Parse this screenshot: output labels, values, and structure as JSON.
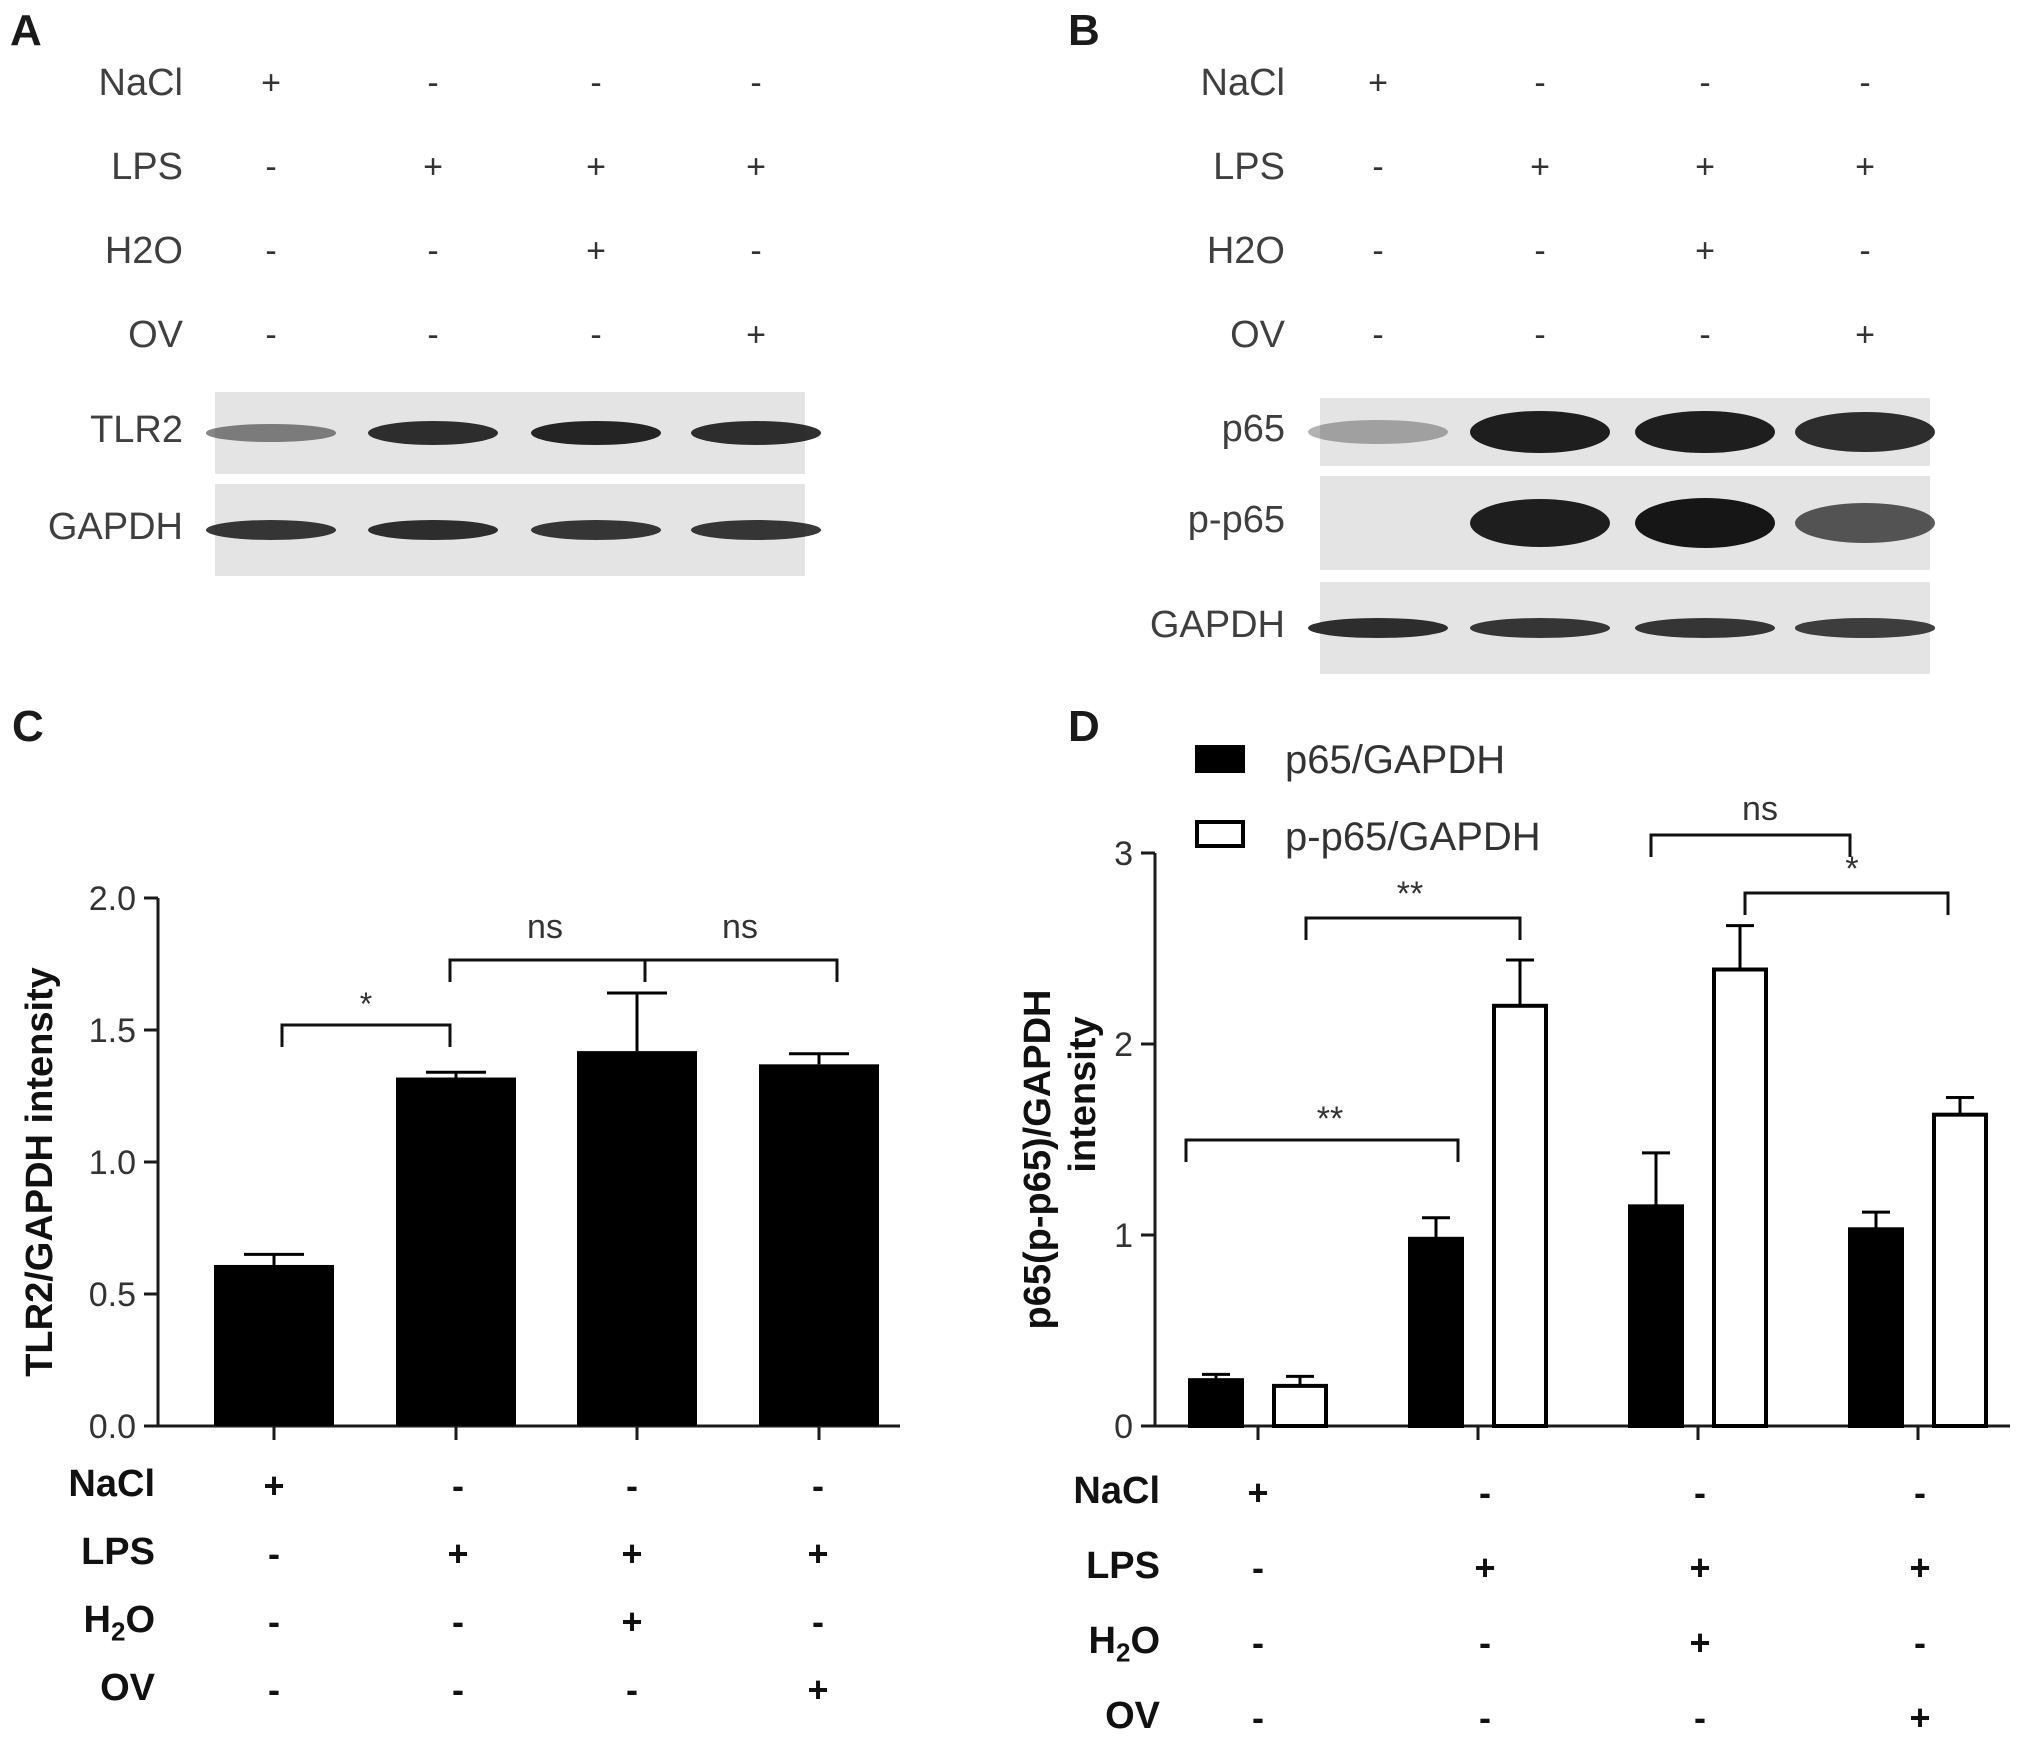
{
  "panels": {
    "a": "A",
    "b": "B",
    "c": "C",
    "d": "D"
  },
  "blot_a": {
    "treatments": [
      {
        "label": "NaCl",
        "signs": [
          "+",
          "-",
          "-",
          "-"
        ]
      },
      {
        "label": "LPS",
        "signs": [
          "-",
          "+",
          "+",
          "+"
        ]
      },
      {
        "label": "H2O",
        "signs": [
          "-",
          "-",
          "+",
          "-"
        ]
      },
      {
        "label": "OV",
        "signs": [
          "-",
          "-",
          "-",
          "+"
        ]
      }
    ],
    "rows": [
      {
        "label": "TLR2",
        "intensity": [
          0.35,
          0.85,
          0.9,
          0.85
        ]
      },
      {
        "label": "GAPDH",
        "intensity": [
          0.8,
          0.85,
          0.8,
          0.8
        ]
      }
    ]
  },
  "blot_b": {
    "treatments": [
      {
        "label": "NaCl",
        "signs": [
          "+",
          "-",
          "-",
          "-"
        ]
      },
      {
        "label": "LPS",
        "signs": [
          "-",
          "+",
          "+",
          "+"
        ]
      },
      {
        "label": "H2O",
        "signs": [
          "-",
          "-",
          "+",
          "-"
        ]
      },
      {
        "label": "OV",
        "signs": [
          "-",
          "-",
          "-",
          "+"
        ]
      }
    ],
    "rows": [
      {
        "label": "p65",
        "intensity": [
          0.1,
          0.95,
          0.95,
          0.85
        ]
      },
      {
        "label": "p-p65",
        "intensity": [
          0.0,
          0.95,
          1.0,
          0.6
        ]
      },
      {
        "label": "GAPDH",
        "intensity": [
          0.85,
          0.8,
          0.8,
          0.75
        ]
      }
    ]
  },
  "bottom_c": {
    "treatments": [
      {
        "label": "NaCl",
        "sub": "",
        "tail": "",
        "signs": [
          "+",
          "-",
          "-",
          "-"
        ]
      },
      {
        "label": "LPS",
        "sub": "",
        "tail": "",
        "signs": [
          "-",
          "+",
          "+",
          "+"
        ]
      },
      {
        "label": "H",
        "sub": "2",
        "tail": "O",
        "signs": [
          "-",
          "-",
          "+",
          "-"
        ]
      },
      {
        "label": "OV",
        "sub": "",
        "tail": "",
        "signs": [
          "-",
          "-",
          "-",
          "+"
        ]
      }
    ]
  },
  "bottom_d": {
    "treatments": [
      {
        "label": "NaCl",
        "sub": "",
        "tail": "",
        "signs": [
          "+",
          "-",
          "-",
          "-"
        ]
      },
      {
        "label": "LPS",
        "sub": "",
        "tail": "",
        "signs": [
          "-",
          "+",
          "+",
          "+"
        ]
      },
      {
        "label": "H",
        "sub": "2",
        "tail": "O",
        "signs": [
          "-",
          "-",
          "+",
          "-"
        ]
      },
      {
        "label": "OV",
        "sub": "",
        "tail": "",
        "signs": [
          "-",
          "-",
          "-",
          "+"
        ]
      }
    ]
  },
  "colors": {
    "bar_fill": "#000000",
    "axis": "#1a1a1a",
    "text": "#3a3a3a"
  },
  "chart_data": [
    {
      "type": "bar",
      "categories": [
        "1",
        "2",
        "3",
        "4"
      ],
      "values": [
        0.61,
        1.32,
        1.42,
        1.37
      ],
      "errors": [
        0.04,
        0.02,
        0.22,
        0.04
      ],
      "xlabel": "",
      "ylabel": "TLR2/GAPDH intensity",
      "ylim": [
        0,
        2.0
      ],
      "yticks": [
        "0.0",
        "0.5",
        "1.0",
        "1.5",
        "2.0"
      ],
      "grid": false,
      "annotations": [
        {
          "text": "*",
          "from": 0,
          "to": 1
        },
        {
          "text": "ns",
          "from": 1,
          "to": 2
        },
        {
          "text": "ns",
          "from": 2,
          "to": 3
        }
      ]
    },
    {
      "type": "bar",
      "categories": [
        "1",
        "2",
        "3",
        "4"
      ],
      "series": [
        {
          "name": "p65/GAPDH",
          "values": [
            0.24,
            0.98,
            1.15,
            1.03
          ],
          "errors": [
            0.03,
            0.11,
            0.28,
            0.09
          ],
          "fill": "#000000"
        },
        {
          "name": "p-p65/GAPDH",
          "values": [
            0.21,
            2.2,
            2.39,
            1.63
          ],
          "errors": [
            0.05,
            0.24,
            0.23,
            0.09
          ],
          "fill": "#ffffff"
        }
      ],
      "xlabel": "",
      "ylabel_line1": "p65(p-p65)/GAPDH",
      "ylabel_line2": "intensity",
      "ylim": [
        0,
        3
      ],
      "yticks": [
        "0",
        "1",
        "2",
        "3"
      ],
      "grid": false,
      "legend": "top-left",
      "annotations": [
        {
          "text": "**",
          "from": "s0c0",
          "to": "s0c1"
        },
        {
          "text": "**",
          "from": "s0c1",
          "to": "s1c1"
        },
        {
          "text": "ns",
          "from": "s0c2",
          "to": "s1c2"
        },
        {
          "text": "*",
          "from": "s1c2",
          "to": "s1c3"
        }
      ]
    }
  ]
}
